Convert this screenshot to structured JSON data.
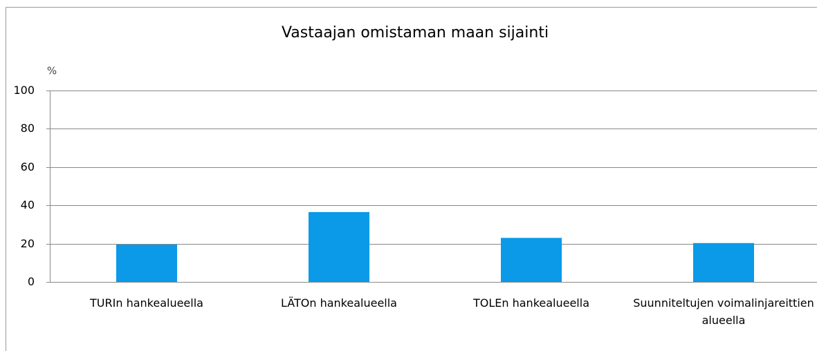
{
  "chart_data": {
    "type": "bar",
    "title": "Vastaajan omistaman maan sijainti",
    "y_label": "%",
    "categories": [
      "TURIn hankealueella",
      "LÄTOn hankealueella",
      "TOLEn hankealueella",
      "Suunniteltujen voimalinjareittien alueella"
    ],
    "values": [
      19.5,
      36.5,
      23,
      20.3
    ],
    "color": "#0a9ae8",
    "ylim": [
      0,
      100
    ],
    "yticks": [
      0,
      20,
      40,
      60,
      80,
      100
    ],
    "grid": true
  }
}
